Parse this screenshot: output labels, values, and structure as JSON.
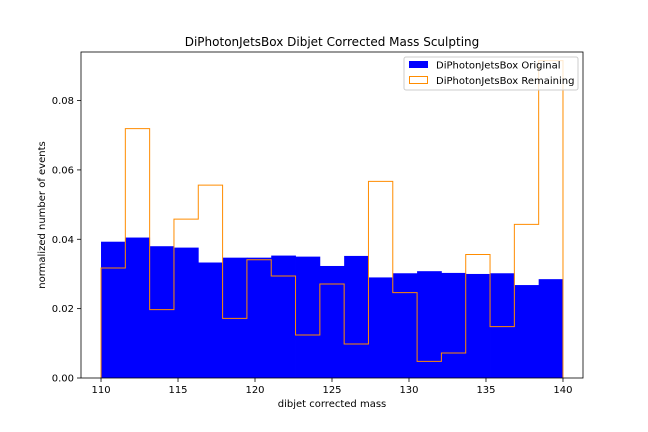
{
  "chart_data": {
    "type": "bar",
    "title": "DiPhotonJetsBox Dibjet Corrected Mass Sculpting",
    "xlabel": "dibjet corrected mass",
    "ylabel": "normalized number of events",
    "xlim": [
      108.7,
      141.3
    ],
    "ylim": [
      0.0,
      0.094
    ],
    "xticks": [
      110,
      115,
      120,
      125,
      130,
      135,
      140
    ],
    "yticks": [
      0.0,
      0.02,
      0.04,
      0.06,
      0.08
    ],
    "ytick_labels": [
      "0.00",
      "0.02",
      "0.04",
      "0.06",
      "0.08"
    ],
    "legend_position": "top-right",
    "bin_edges": [
      110,
      111.579,
      113.158,
      114.737,
      116.316,
      117.895,
      119.474,
      121.053,
      122.632,
      124.211,
      125.789,
      127.368,
      128.947,
      130.526,
      132.105,
      133.684,
      135.263,
      136.842,
      138.421,
      140
    ],
    "series": [
      {
        "name": "DiPhotonJetsBox Original",
        "style": "filled",
        "color": "#0000ff",
        "values": [
          0.0393,
          0.0405,
          0.038,
          0.0376,
          0.0333,
          0.0347,
          0.0347,
          0.0353,
          0.035,
          0.0323,
          0.0352,
          0.029,
          0.0302,
          0.0308,
          0.0303,
          0.03,
          0.0302,
          0.0268,
          0.0285
        ]
      },
      {
        "name": "DiPhotonJetsBox Remaining",
        "style": "step",
        "color": "#ff8c00",
        "values": [
          0.0317,
          0.0719,
          0.0197,
          0.0458,
          0.0556,
          0.0172,
          0.0341,
          0.0294,
          0.0124,
          0.0271,
          0.0098,
          0.0567,
          0.0246,
          0.0048,
          0.0072,
          0.0356,
          0.0148,
          0.0443,
          0.0915
        ]
      }
    ]
  }
}
